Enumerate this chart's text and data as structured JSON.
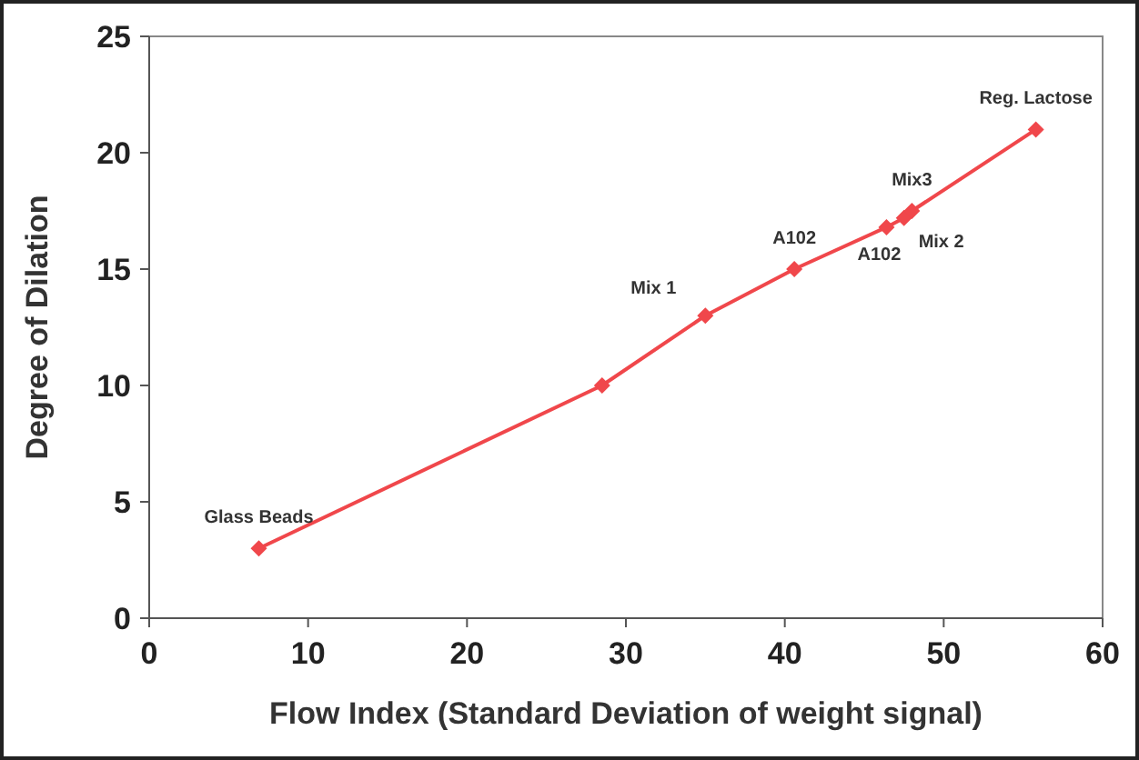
{
  "chart_data": {
    "type": "line",
    "xlabel": "Flow Index (Standard Deviation of weight signal)",
    "ylabel": "Degree of Dilation",
    "x": [
      6.9,
      28.5,
      35,
      40.6,
      46.4,
      47.5,
      48,
      55.8
    ],
    "series": [
      {
        "color": "#f0474b",
        "values": [
          3,
          10,
          13,
          15,
          16.8,
          17.2,
          17.5,
          21
        ]
      }
    ],
    "xlim": [
      0,
      60
    ],
    "xticks": [
      0,
      10,
      20,
      30,
      40,
      50,
      60
    ],
    "ylim": [
      0,
      25
    ],
    "yticks": [
      0,
      5,
      10,
      15,
      20,
      25
    ],
    "marker": "diamond",
    "line_style": "solid",
    "grid": false,
    "annotations": [
      {
        "text": "Glass Beads",
        "x": 6.9,
        "y": 3
      },
      {
        "text": "Mix 1",
        "x": 35,
        "y": 13
      },
      {
        "text": "A102",
        "x": 40.6,
        "y": 15
      },
      {
        "text": "A102",
        "x": 46.4,
        "y": 16.8
      },
      {
        "text": "Mix 2",
        "x": 47.5,
        "y": 17.2
      },
      {
        "text": "Mix3",
        "x": 48,
        "y": 17.5
      },
      {
        "text": "Reg. Lactose",
        "x": 55.8,
        "y": 21
      }
    ]
  }
}
